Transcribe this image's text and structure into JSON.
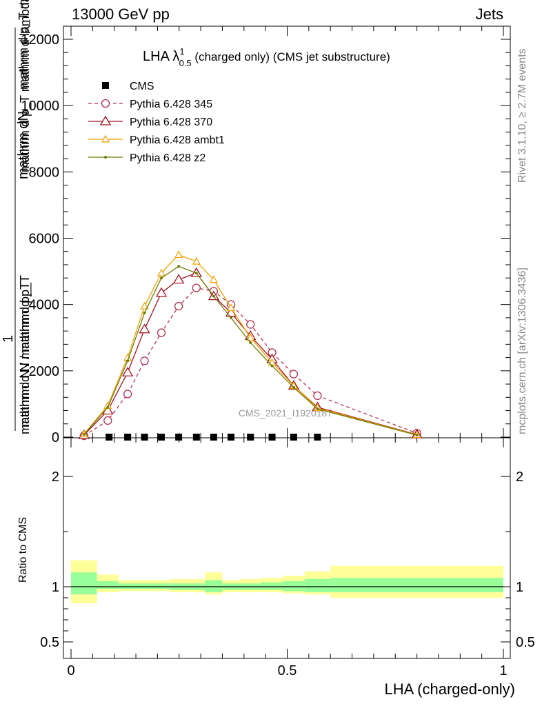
{
  "header": {
    "left": "13000 GeV pp",
    "right": "Jets"
  },
  "side_labels": {
    "rivet": "Rivet 3.1.10, ≥ 2.7M events",
    "mcplots": "mcplots.cern.ch [arXiv:1306.3436]"
  },
  "watermark": "CMS_2021_I1920187",
  "chart_data": [
    {
      "type": "line",
      "title_main": "LHA λ",
      "title_sup": "1",
      "title_sub": "0.5",
      "title_rest": " (charged only) (CMS jet substructure)",
      "ylabel_top_line1": "mathrm dN",
      "ylabel_top_line2": "mathrm d p_T mathrm d lambda",
      "ylabel_top_line3": "mathrm d p_T mathrm d lambda",
      "ylabel_one": "1",
      "ylabel_bottom": "mathrm d N / mathrm d p_T",
      "ylabel_bottom2": "mathrm d N / mathrm d p_T",
      "xlim": [
        0,
        1
      ],
      "ylim": [
        0,
        12000
      ],
      "y_ticks": [
        "0",
        "2000",
        "4000",
        "6000",
        "8000",
        "10000",
        "12000"
      ],
      "y_tick_values": [
        0,
        2000,
        4000,
        6000,
        8000,
        10000,
        12000
      ],
      "legend_position": "top-left",
      "series": [
        {
          "name": "CMS",
          "color": "#000000",
          "marker": "square",
          "x": [
            0.088,
            0.131,
            0.17,
            0.209,
            0.249,
            0.29,
            0.33,
            0.37,
            0.415,
            0.465,
            0.515,
            0.57
          ],
          "y": [
            0,
            0,
            0,
            0,
            0,
            0,
            0,
            0,
            0,
            0,
            0,
            0
          ]
        },
        {
          "name": "Pythia 6.428 345",
          "color": "#b03050",
          "marker": "circle",
          "dash": true,
          "x": [
            0.03,
            0.085,
            0.131,
            0.17,
            0.209,
            0.249,
            0.29,
            0.33,
            0.37,
            0.415,
            0.465,
            0.515,
            0.57,
            0.8
          ],
          "y": [
            40,
            500,
            1300,
            2300,
            3150,
            3950,
            4500,
            4400,
            4000,
            3400,
            2550,
            1900,
            1250,
            120
          ]
        },
        {
          "name": "Pythia 6.428 370",
          "color": "#a01020",
          "marker": "triangle",
          "x": [
            0.03,
            0.085,
            0.131,
            0.17,
            0.209,
            0.249,
            0.29,
            0.33,
            0.37,
            0.415,
            0.465,
            0.515,
            0.57,
            0.8
          ],
          "y": [
            60,
            800,
            1950,
            3250,
            4350,
            4750,
            4950,
            4250,
            3750,
            3050,
            2350,
            1550,
            900,
            80
          ]
        },
        {
          "name": "Pythia 6.428 ambt1",
          "color": "#f0a000",
          "marker": "triangle-small",
          "x": [
            0.03,
            0.085,
            0.131,
            0.17,
            0.209,
            0.249,
            0.29,
            0.33,
            0.37,
            0.415,
            0.465,
            0.515,
            0.57,
            0.8
          ],
          "y": [
            90,
            950,
            2400,
            3950,
            4950,
            5500,
            5300,
            4750,
            3900,
            3000,
            2250,
            1550,
            880,
            70
          ]
        },
        {
          "name": "Pythia 6.428 z2",
          "color": "#6e7a00",
          "marker": "dot",
          "x": [
            0.03,
            0.085,
            0.131,
            0.17,
            0.209,
            0.249,
            0.29,
            0.33,
            0.37,
            0.415,
            0.465,
            0.515,
            0.57,
            0.8
          ],
          "y": [
            80,
            900,
            2300,
            3750,
            4800,
            5150,
            4950,
            4250,
            3600,
            2850,
            2150,
            1500,
            850,
            60
          ]
        }
      ]
    },
    {
      "type": "area",
      "ylabel": "Ratio to CMS",
      "xlabel": "LHA (charged-only)",
      "xlim": [
        0,
        1
      ],
      "ylim": [
        0.35,
        2.35
      ],
      "y_ticks": [
        "0.5",
        "1",
        "2"
      ],
      "y_tick_values": [
        0.5,
        1,
        2
      ],
      "x_ticks": [
        "0",
        "0.5",
        "1"
      ],
      "x_tick_values": [
        0,
        0.5,
        1
      ],
      "bins": [
        0,
        0.06,
        0.11,
        0.15,
        0.19,
        0.23,
        0.27,
        0.31,
        0.35,
        0.39,
        0.44,
        0.49,
        0.54,
        0.6,
        1
      ],
      "band_total_low": [
        0.85,
        0.95,
        0.96,
        0.96,
        0.96,
        0.95,
        0.95,
        0.93,
        0.95,
        0.95,
        0.95,
        0.94,
        0.93,
        0.9
      ],
      "band_total_high": [
        1.24,
        1.11,
        1.06,
        1.06,
        1.06,
        1.07,
        1.07,
        1.13,
        1.06,
        1.07,
        1.08,
        1.1,
        1.14,
        1.19
      ],
      "band_stat_low": [
        0.93,
        0.98,
        0.98,
        0.98,
        0.98,
        0.97,
        0.97,
        0.95,
        0.97,
        0.97,
        0.97,
        0.96,
        0.95,
        0.95
      ],
      "band_stat_high": [
        1.13,
        1.05,
        1.03,
        1.03,
        1.03,
        1.03,
        1.03,
        1.06,
        1.03,
        1.03,
        1.04,
        1.05,
        1.07,
        1.08
      ],
      "colors": {
        "total": "#ffff99",
        "stat": "#99ff99",
        "line": "#000000"
      }
    }
  ]
}
